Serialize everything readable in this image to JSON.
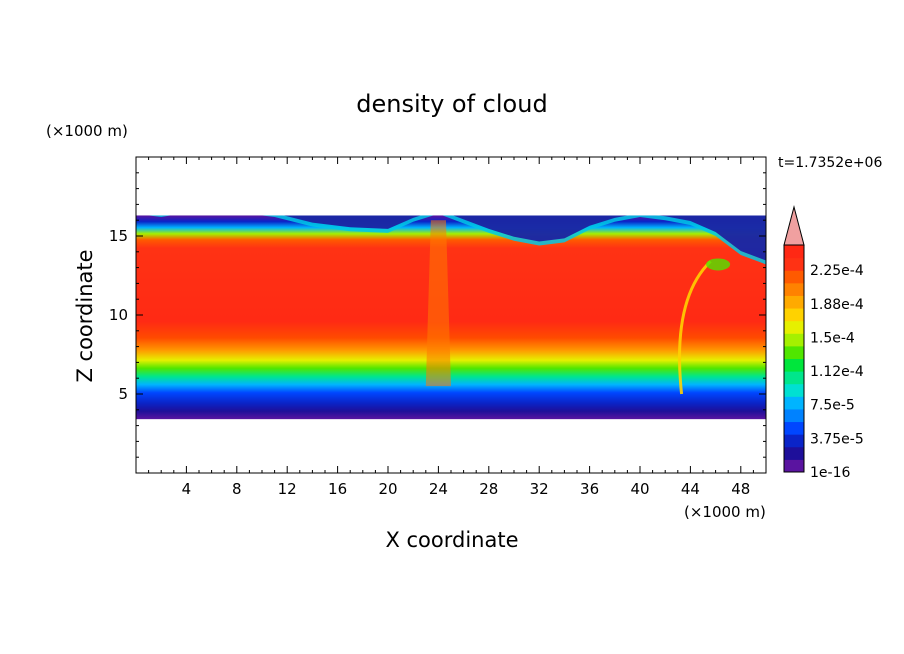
{
  "chart_data": {
    "type": "heatmap",
    "title": "density of cloud",
    "xlabel": "X coordinate",
    "ylabel": "Z coordinate",
    "x_unit": "(×1000 m)",
    "y_unit": "(×1000 m)",
    "time_label": "t=1.7352e+06",
    "xlim": [
      0,
      50
    ],
    "ylim": [
      0,
      20
    ],
    "x_ticks": [
      "4",
      "8",
      "12",
      "16",
      "20",
      "24",
      "28",
      "32",
      "36",
      "40",
      "44",
      "48"
    ],
    "y_ticks": [
      "5",
      "10",
      "15"
    ],
    "colorbar": {
      "labels": [
        "1e-16",
        "3.75e-5",
        "7.5e-5",
        "1.12e-4",
        "1.5e-4",
        "1.88e-4",
        "2.25e-4"
      ],
      "extend": "max",
      "colors": [
        "#5a14a0",
        "#1e0f9a",
        "#0a24c8",
        "#0046ff",
        "#0082ff",
        "#00b4ff",
        "#00e0d2",
        "#00e68c",
        "#00e63c",
        "#50e600",
        "#a5f000",
        "#e6f000",
        "#ffd200",
        "#ffaa00",
        "#ff8200",
        "#ff5a00",
        "#ff3214",
        "#ff2814",
        "#f0a0a0"
      ]
    },
    "cloud_base_km": 3.4,
    "cloud_top_km": 16.3,
    "grid": false
  }
}
